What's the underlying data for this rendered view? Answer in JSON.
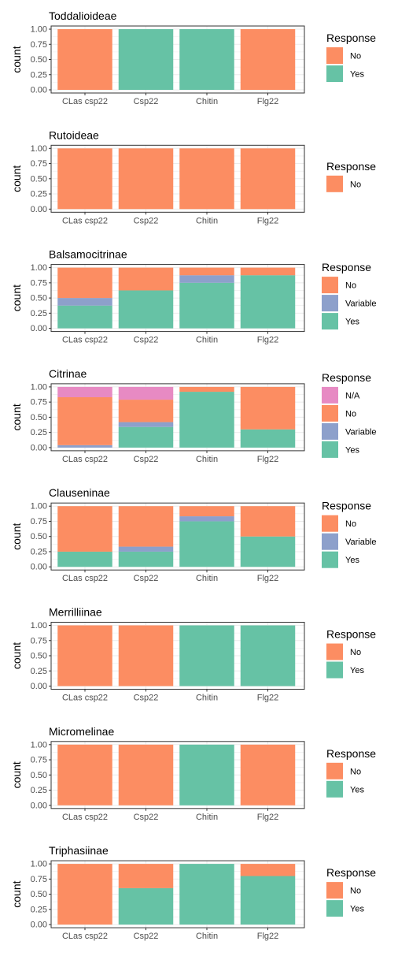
{
  "colors": {
    "No": "#fc8d62",
    "Yes": "#66c2a5",
    "Variable": "#8da0cb",
    "N/A": "#e78ac3",
    "grid": "#ebebeb",
    "axis_text": "#4d4d4d",
    "panel_border": "#333333"
  },
  "chart_data": [
    {
      "type": "bar",
      "stacked": true,
      "title": "Toddalioideae",
      "ylabel": "count",
      "ylim": [
        0,
        1
      ],
      "yticks": [
        "0.00",
        "0.25",
        "0.50",
        "0.75",
        "1.00"
      ],
      "categories": [
        "CLas csp22",
        "Csp22",
        "Chitin",
        "Flg22"
      ],
      "legend_title": "Response",
      "legend": [
        "No",
        "Yes"
      ],
      "series": [
        {
          "name": "No",
          "values": [
            1.0,
            0,
            0,
            1.0
          ]
        },
        {
          "name": "Yes",
          "values": [
            0,
            1.0,
            1.0,
            0
          ]
        }
      ]
    },
    {
      "type": "bar",
      "stacked": true,
      "title": "Rutoideae",
      "ylabel": "count",
      "ylim": [
        0,
        1
      ],
      "yticks": [
        "0.00",
        "0.25",
        "0.50",
        "0.75",
        "1.00"
      ],
      "categories": [
        "CLas csp22",
        "Csp22",
        "Chitin",
        "Flg22"
      ],
      "legend_title": "Response",
      "legend": [
        "No"
      ],
      "series": [
        {
          "name": "No",
          "values": [
            1.0,
            1.0,
            1.0,
            1.0
          ]
        }
      ]
    },
    {
      "type": "bar",
      "stacked": true,
      "title": "Balsamocitrinae",
      "ylabel": "count",
      "ylim": [
        0,
        1
      ],
      "yticks": [
        "0.00",
        "0.25",
        "0.50",
        "0.75",
        "1.00"
      ],
      "categories": [
        "CLas csp22",
        "Csp22",
        "Chitin",
        "Flg22"
      ],
      "legend_title": "Response",
      "legend": [
        "No",
        "Variable",
        "Yes"
      ],
      "series": [
        {
          "name": "No",
          "values": [
            0.5,
            0.375,
            0.125,
            0.125
          ]
        },
        {
          "name": "Variable",
          "values": [
            0.125,
            0,
            0.125,
            0
          ]
        },
        {
          "name": "Yes",
          "values": [
            0.375,
            0.625,
            0.75,
            0.875
          ]
        }
      ]
    },
    {
      "type": "bar",
      "stacked": true,
      "title": "Citrinae",
      "ylabel": "count",
      "ylim": [
        0,
        1
      ],
      "yticks": [
        "0.00",
        "0.25",
        "0.50",
        "0.75",
        "1.00"
      ],
      "categories": [
        "CLas csp22",
        "Csp22",
        "Chitin",
        "Flg22"
      ],
      "legend_title": "Response",
      "legend": [
        "N/A",
        "No",
        "Variable",
        "Yes"
      ],
      "series": [
        {
          "name": "N/A",
          "values": [
            0.17,
            0.21,
            0,
            0
          ]
        },
        {
          "name": "No",
          "values": [
            0.79,
            0.37,
            0.08,
            0.7
          ]
        },
        {
          "name": "Variable",
          "values": [
            0.04,
            0.08,
            0,
            0
          ]
        },
        {
          "name": "Yes",
          "values": [
            0,
            0.34,
            0.92,
            0.3
          ]
        }
      ]
    },
    {
      "type": "bar",
      "stacked": true,
      "title": "Clauseninae",
      "ylabel": "count",
      "ylim": [
        0,
        1
      ],
      "yticks": [
        "0.00",
        "0.25",
        "0.50",
        "0.75",
        "1.00"
      ],
      "categories": [
        "CLas csp22",
        "Csp22",
        "Chitin",
        "Flg22"
      ],
      "legend_title": "Response",
      "legend": [
        "No",
        "Variable",
        "Yes"
      ],
      "series": [
        {
          "name": "No",
          "values": [
            0.75,
            0.667,
            0.167,
            0.5
          ]
        },
        {
          "name": "Variable",
          "values": [
            0,
            0.083,
            0.083,
            0
          ]
        },
        {
          "name": "Yes",
          "values": [
            0.25,
            0.25,
            0.75,
            0.5
          ]
        }
      ]
    },
    {
      "type": "bar",
      "stacked": true,
      "title": "Merrilliinae",
      "ylabel": "count",
      "ylim": [
        0,
        1
      ],
      "yticks": [
        "0.00",
        "0.25",
        "0.50",
        "0.75",
        "1.00"
      ],
      "categories": [
        "CLas csp22",
        "Csp22",
        "Chitin",
        "Flg22"
      ],
      "legend_title": "Response",
      "legend": [
        "No",
        "Yes"
      ],
      "series": [
        {
          "name": "No",
          "values": [
            1.0,
            1.0,
            0,
            0
          ]
        },
        {
          "name": "Yes",
          "values": [
            0,
            0,
            1.0,
            1.0
          ]
        }
      ]
    },
    {
      "type": "bar",
      "stacked": true,
      "title": "Micromelinae",
      "ylabel": "count",
      "ylim": [
        0,
        1
      ],
      "yticks": [
        "0.00",
        "0.25",
        "0.50",
        "0.75",
        "1.00"
      ],
      "categories": [
        "CLas csp22",
        "Csp22",
        "Chitin",
        "Flg22"
      ],
      "legend_title": "Response",
      "legend": [
        "No",
        "Yes"
      ],
      "series": [
        {
          "name": "No",
          "values": [
            1.0,
            1.0,
            0,
            1.0
          ]
        },
        {
          "name": "Yes",
          "values": [
            0,
            0,
            1.0,
            0
          ]
        }
      ]
    },
    {
      "type": "bar",
      "stacked": true,
      "title": "Triphasiinae",
      "ylabel": "count",
      "ylim": [
        0,
        1
      ],
      "yticks": [
        "0.00",
        "0.25",
        "0.50",
        "0.75",
        "1.00"
      ],
      "categories": [
        "CLas csp22",
        "Csp22",
        "Chitin",
        "Flg22"
      ],
      "legend_title": "Response",
      "legend": [
        "No",
        "Yes"
      ],
      "series": [
        {
          "name": "No",
          "values": [
            1.0,
            0.4,
            0,
            0.2
          ]
        },
        {
          "name": "Yes",
          "values": [
            0,
            0.6,
            1.0,
            0.8
          ]
        }
      ]
    }
  ]
}
